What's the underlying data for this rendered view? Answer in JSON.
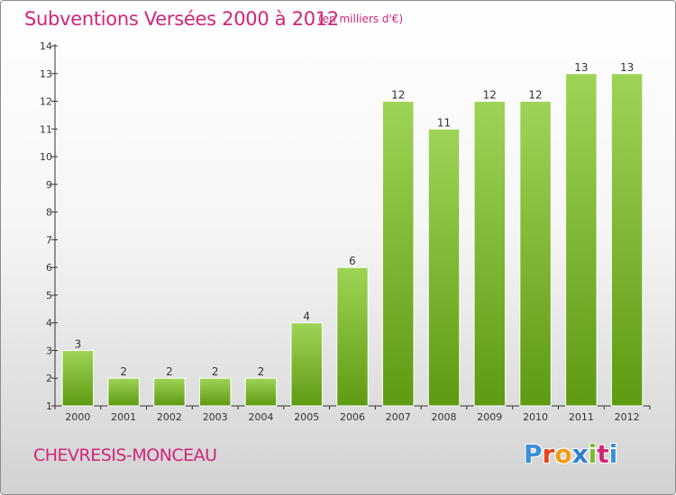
{
  "header": {
    "title": "Subventions Versées 2000 à 2012",
    "unit": "(en milliers d'€)"
  },
  "footer": {
    "commune": "CHEVRESIS-MONCEAU",
    "logo": [
      "P",
      "r",
      "o",
      "x",
      "i",
      "t",
      "i"
    ]
  },
  "colors": {
    "title": "#d0257a",
    "bar_top": "#9ed456",
    "bar_bottom": "#5e9a12",
    "axis": "#333333",
    "logo": [
      "#3a8fd6",
      "#e8431f",
      "#f29a1a",
      "#2f7fd0",
      "#7ab92e",
      "#d0257a",
      "#3a8fd6"
    ]
  },
  "chart_data": {
    "type": "bar",
    "title": "Subventions Versées 2000 à 2012",
    "subtitle": "(en milliers d'€)",
    "categories": [
      "2000",
      "2001",
      "2002",
      "2003",
      "2004",
      "2005",
      "2006",
      "2007",
      "2008",
      "2009",
      "2010",
      "2011",
      "2012"
    ],
    "values": [
      3,
      2,
      2,
      2,
      2,
      4,
      6,
      12,
      11,
      12,
      12,
      13,
      13
    ],
    "ylim": [
      1,
      14
    ],
    "yticks": [
      1,
      2,
      3,
      4,
      5,
      6,
      7,
      8,
      9,
      10,
      11,
      12,
      13,
      14
    ],
    "grid": false,
    "legend": "none"
  }
}
